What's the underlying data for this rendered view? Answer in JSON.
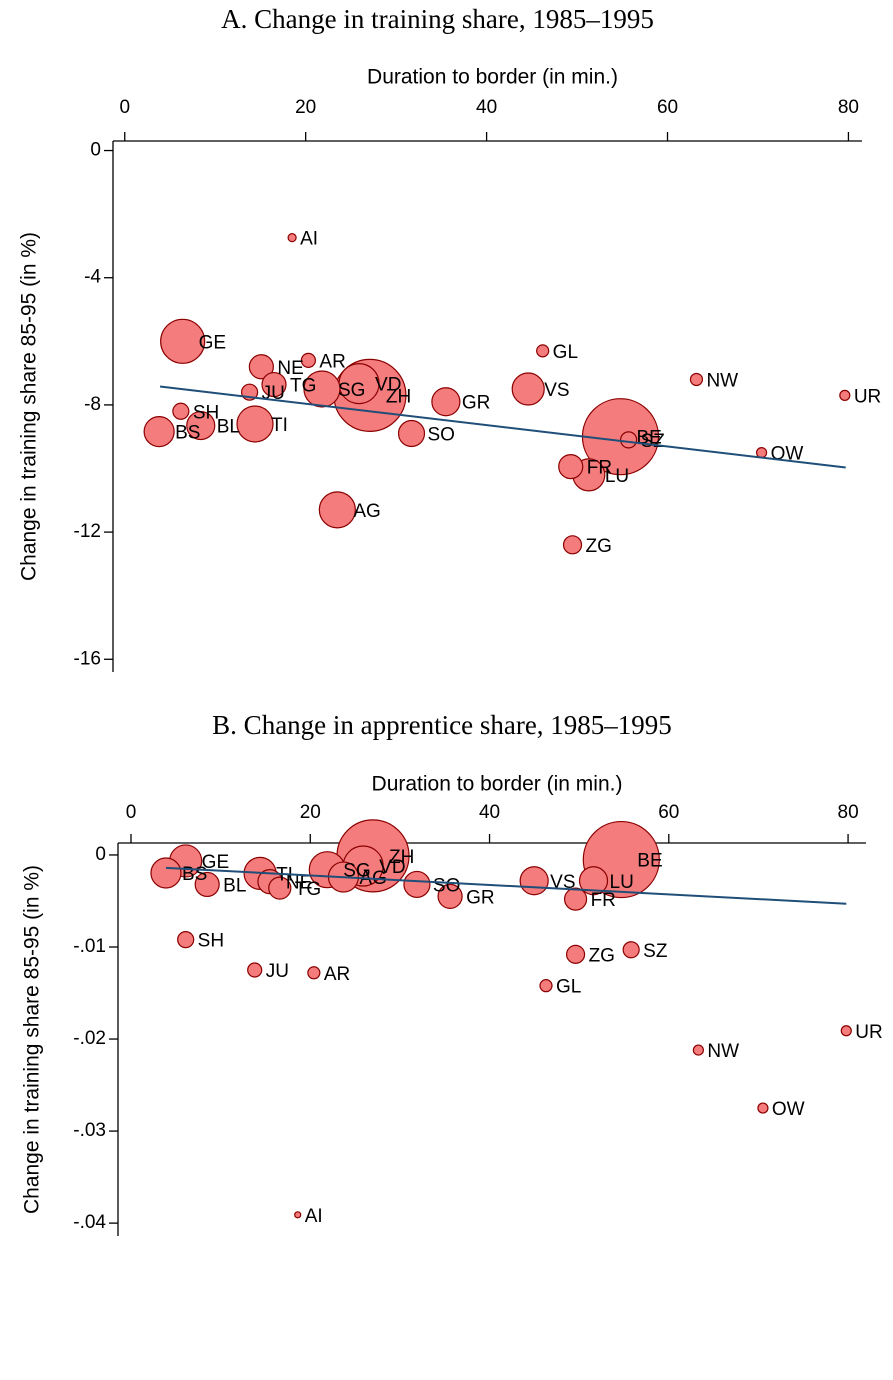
{
  "chart_data": [
    {
      "type": "scatter",
      "title": "A. Change in training share, 1985–1995",
      "xlabel": "Duration to border (in min.)",
      "ylabel": "Change in training share 85-95 (in %)",
      "xlim": [
        -1.3,
        81.5
      ],
      "ylim": [
        -16.4,
        0.3
      ],
      "xticks": [
        0,
        20,
        40,
        60,
        80
      ],
      "yticks": [
        0,
        -4,
        -8,
        -12,
        -16
      ],
      "marker_color": "#f47c7c",
      "marker_edge": "#8b0000",
      "fit_color": "#1f4e79",
      "points": {
        "labels": [
          "BE",
          "ZH",
          "GE",
          "VD",
          "SG",
          "TI",
          "AG",
          "VS",
          "BS",
          "LU",
          "GR",
          "BL",
          "SO",
          "NE",
          "TG",
          "FR",
          "ZG",
          "JU",
          "SH",
          "SZ",
          "AR",
          "GL",
          "NW",
          "UR",
          "OW",
          "AI"
        ],
        "x": [
          54.8,
          27.1,
          6.4,
          25.9,
          21.8,
          14.4,
          23.5,
          44.6,
          3.8,
          51.3,
          35.5,
          8.4,
          31.7,
          15.1,
          16.5,
          49.3,
          49.5,
          13.8,
          6.2,
          55.7,
          20.3,
          46.2,
          63.2,
          79.6,
          70.4,
          18.5
        ],
        "y": [
          -9.0,
          -7.7,
          -6.0,
          -7.33,
          -7.5,
          -8.6,
          -11.3,
          -7.5,
          -8.84,
          -10.2,
          -7.9,
          -8.65,
          -8.9,
          -6.8,
          -7.36,
          -9.94,
          -12.4,
          -7.6,
          -8.2,
          -9.1,
          -6.6,
          -6.3,
          -7.2,
          -7.7,
          -9.5,
          -2.74
        ],
        "sizes": [
          38,
          36,
          22,
          20,
          18,
          18,
          18,
          16,
          15,
          16,
          14,
          14,
          13,
          12,
          12,
          12,
          9,
          8,
          8,
          8,
          7,
          6,
          6,
          5,
          5,
          4
        ]
      },
      "fit": {
        "x": [
          3.9,
          79.7
        ],
        "y": [
          -7.42,
          -9.97
        ]
      }
    },
    {
      "type": "scatter",
      "title": "B. Change in apprentice share, 1985–1995",
      "xlabel": "Duration to border (in min.)",
      "ylabel": "Change in training share 85-95 (in %)",
      "xlim": [
        -1.45,
        82
      ],
      "ylim": [
        -0.0414,
        0.0013
      ],
      "xticks": [
        0,
        20,
        40,
        60,
        80
      ],
      "yticks": [
        0,
        {
          "value": -0.01,
          "label": "-.01"
        },
        {
          "value": -0.02,
          "label": "-.02"
        },
        {
          "value": -0.03,
          "label": "-.03"
        },
        {
          "value": -0.04,
          "label": "-.04"
        }
      ],
      "marker_color": "#f47c7c",
      "marker_edge": "#8b0000",
      "fit_color": "#1f4e79",
      "points": {
        "labels": [
          "BE",
          "ZH",
          "GE",
          "VD",
          "SG",
          "TI",
          "AG",
          "VS",
          "BS",
          "LU",
          "GR",
          "BL",
          "SO",
          "NE",
          "TG",
          "FR",
          "ZG",
          "JU",
          "SH",
          "SZ",
          "AR",
          "GL",
          "NW",
          "UR",
          "OW",
          "AI"
        ],
        "x": [
          54.7,
          27.0,
          6.1,
          25.9,
          21.9,
          14.4,
          23.7,
          44.98,
          3.9,
          51.6,
          35.6,
          8.5,
          31.9,
          15.5,
          16.6,
          49.6,
          49.6,
          13.8,
          6.1,
          55.8,
          20.4,
          46.3,
          63.3,
          79.8,
          70.5,
          18.6
        ],
        "y": [
          -0.0005,
          -0.0001,
          -0.00065,
          -0.0012,
          -0.0016,
          -0.002,
          -0.0024,
          -0.0028,
          -0.00196,
          -0.0028,
          -0.0045,
          -0.0032,
          -0.0032,
          -0.0029,
          -0.0036,
          -0.0048,
          -0.0108,
          -0.0125,
          -0.0092,
          -0.0103,
          -0.0128,
          -0.0142,
          -0.0212,
          -0.0191,
          -0.0275,
          -0.0391
        ],
        "sizes": [
          38,
          36,
          16,
          20,
          18,
          16,
          15,
          14,
          15,
          14,
          12,
          12,
          13,
          12,
          11,
          11,
          9,
          7,
          8,
          8,
          6,
          6,
          5,
          5,
          5,
          3
        ]
      },
      "fit": {
        "x": [
          3.9,
          79.8
        ],
        "y": [
          -0.0014,
          -0.0053
        ]
      }
    }
  ]
}
